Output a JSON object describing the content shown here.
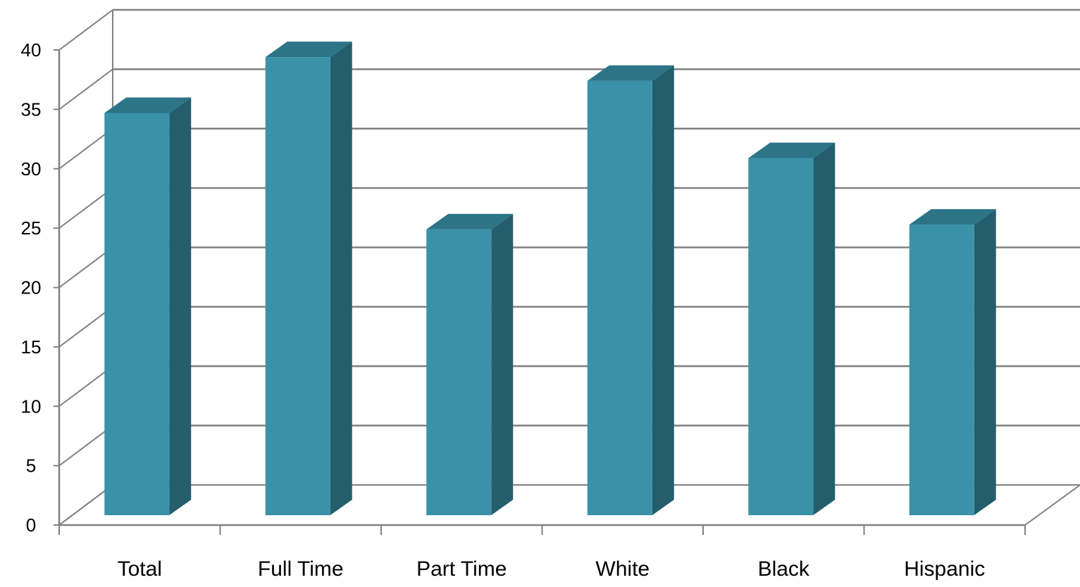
{
  "chart_data": {
    "type": "bar",
    "style": "3d-column",
    "categories": [
      "Total",
      "Full Time",
      "Part Time",
      "White",
      "Black",
      "Hispanic"
    ],
    "values": [
      34.7,
      39.4,
      24.9,
      37.4,
      30.9,
      25.3
    ],
    "ylim": [
      0,
      40
    ],
    "yticks": [
      "0",
      "5",
      "10",
      "15",
      "20",
      "25",
      "30",
      "35",
      "40"
    ],
    "title": "",
    "xlabel": "",
    "ylabel": "",
    "grid": true,
    "legend": "none",
    "colors": {
      "bar_front": "#3A92A8",
      "bar_side": "#245E6C",
      "bar_top": "#2D7487",
      "grid": "#808080",
      "axis": "#808080"
    }
  }
}
